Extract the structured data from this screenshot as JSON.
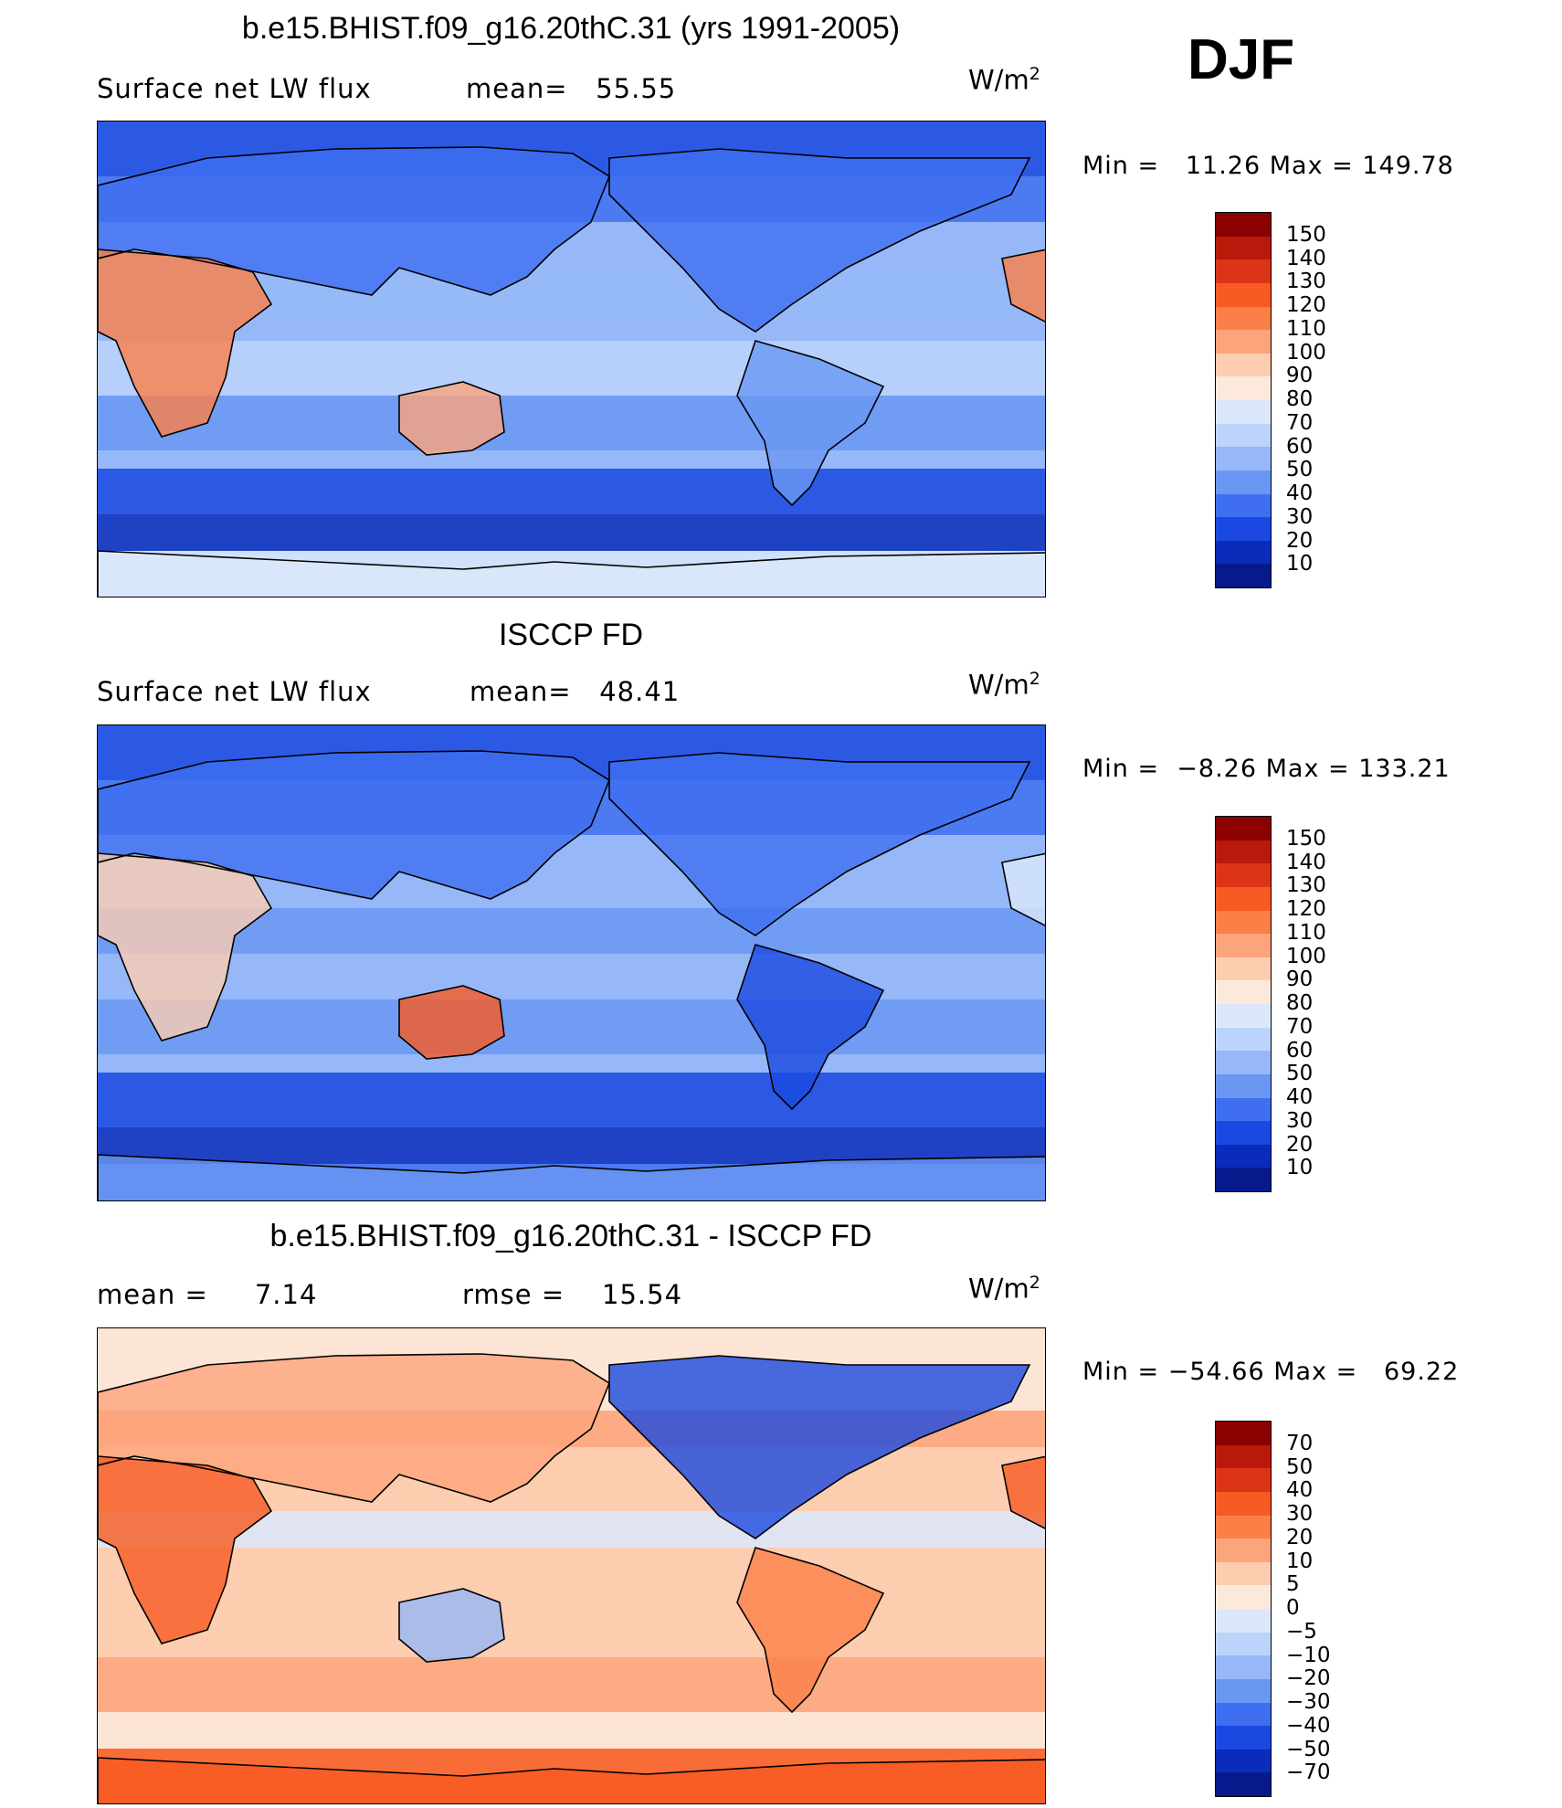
{
  "season": "DJF",
  "panels": [
    {
      "title": "b.e15.BHIST.f09_g16.20thC.31 (yrs 1991-2005)",
      "left_text": "Surface net LW flux",
      "mean_text": "mean=   55.55",
      "units": "W/m",
      "units_exp": "2",
      "minmax": "Min =   11.26 Max = 149.78"
    },
    {
      "title": "ISCCP FD",
      "left_text": "Surface net LW flux",
      "mean_text": "mean=   48.41",
      "units": "W/m",
      "units_exp": "2",
      "minmax": "Min =  −8.26 Max = 133.21"
    },
    {
      "title": "b.e15.BHIST.f09_g16.20thC.31 - ISCCP FD",
      "left_text": "mean =     7.14",
      "mean_text": "rmse =    15.54",
      "units": "W/m",
      "units_exp": "2",
      "minmax": "Min = −54.66 Max =   69.22"
    }
  ],
  "chart_data": [
    {
      "type": "heatmap",
      "title": "b.e15.BHIST.f09_g16.20thC.31 (yrs 1991-2005)",
      "subtitle": "Surface net LW flux",
      "units": "W/m2",
      "mean": 55.55,
      "min": 11.26,
      "max": 149.78,
      "colorbar_levels": [
        "150",
        "140",
        "130",
        "120",
        "110",
        "100",
        "90",
        "80",
        "70",
        "60",
        "50",
        "40",
        "30",
        "20",
        "10"
      ],
      "colors": [
        "#8b0000",
        "#b8190a",
        "#dc3416",
        "#f75a22",
        "#fb8047",
        "#fca47c",
        "#fdcdb0",
        "#fde9dc",
        "#dbe8fb",
        "#bcd4fb",
        "#96b8f8",
        "#6a97f2",
        "#3f6ff0",
        "#1a48e0",
        "#0b2cbb",
        "#061a8c"
      ]
    },
    {
      "type": "heatmap",
      "title": "ISCCP FD",
      "subtitle": "Surface net LW flux",
      "units": "W/m2",
      "mean": 48.41,
      "min": -8.26,
      "max": 133.21,
      "colorbar_levels": [
        "150",
        "140",
        "130",
        "120",
        "110",
        "100",
        "90",
        "80",
        "70",
        "60",
        "50",
        "40",
        "30",
        "20",
        "10"
      ],
      "colors": [
        "#8b0000",
        "#b8190a",
        "#dc3416",
        "#f75a22",
        "#fb8047",
        "#fca47c",
        "#fdcdb0",
        "#fde9dc",
        "#dbe8fb",
        "#bcd4fb",
        "#96b8f8",
        "#6a97f2",
        "#3f6ff0",
        "#1a48e0",
        "#0b2cbb",
        "#061a8c"
      ]
    },
    {
      "type": "heatmap",
      "title": "b.e15.BHIST.f09_g16.20thC.31 - ISCCP FD",
      "units": "W/m2",
      "mean": 7.14,
      "rmse": 15.54,
      "min": -54.66,
      "max": 69.22,
      "colorbar_levels": [
        "70",
        "50",
        "40",
        "30",
        "20",
        "10",
        "5",
        "0",
        "−5",
        "−10",
        "−20",
        "−30",
        "−40",
        "−50",
        "−70"
      ],
      "colors": [
        "#8b0000",
        "#b8190a",
        "#dc3416",
        "#f75a22",
        "#fb8047",
        "#fca47c",
        "#fdcdb0",
        "#fde9dc",
        "#dbe8fb",
        "#bcd4fb",
        "#96b8f8",
        "#6a97f2",
        "#3f6ff0",
        "#1a48e0",
        "#0b2cbb",
        "#061a8c"
      ]
    }
  ]
}
